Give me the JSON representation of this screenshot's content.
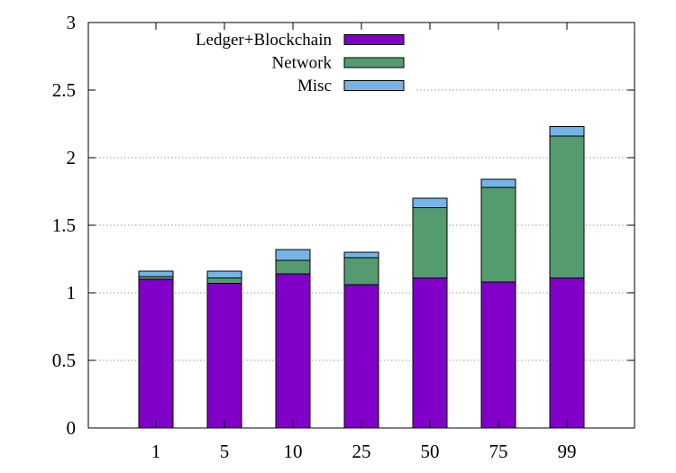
{
  "chart_data": {
    "type": "bar",
    "stacked": true,
    "categories": [
      "1",
      "5",
      "10",
      "25",
      "50",
      "75",
      "99"
    ],
    "series": [
      {
        "name": "Ledger+Blockchain",
        "color": "#8000c8",
        "values": [
          1.1,
          1.07,
          1.14,
          1.06,
          1.11,
          1.08,
          1.11
        ]
      },
      {
        "name": "Network",
        "color": "#559b70",
        "values": [
          0.02,
          0.04,
          0.1,
          0.2,
          0.52,
          0.7,
          1.05
        ]
      },
      {
        "name": "Misc",
        "color": "#75b4e6",
        "values": [
          0.04,
          0.05,
          0.08,
          0.04,
          0.07,
          0.06,
          0.07
        ]
      }
    ],
    "yticks": [
      "0",
      "0.5",
      "1",
      "1.5",
      "2",
      "2.5",
      "3"
    ],
    "ylim": [
      0,
      3
    ],
    "title": "",
    "xlabel": "",
    "ylabel": "",
    "grid": "horizontal dotted",
    "legend": "top-left"
  }
}
